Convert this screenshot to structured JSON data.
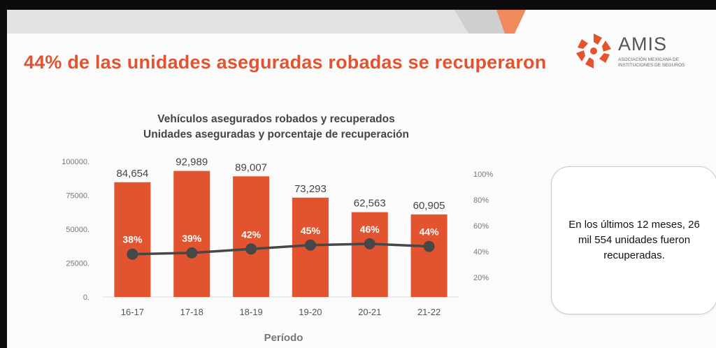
{
  "headline": "44% de las unidades aseguradas robadas se recuperaron",
  "logo": {
    "name": "AMIS",
    "subtitle": "Asociación Mexicana de Instituciones de Seguros",
    "color": "#e2542f"
  },
  "note": {
    "text": "En los últimos 12 meses, 26 mil 554 unidades fueron recuperadas."
  },
  "colors": {
    "accent": "#e2542f",
    "bar": "#e2542f",
    "line": "#474747",
    "topbar": "#d0d0d0"
  },
  "chart_data": {
    "type": "bar",
    "title": "Vehículos asegurados robados y recuperados",
    "subtitle": "Unidades aseguradas y porcentaje de recuperación",
    "xlabel": "Período",
    "ylabel": "",
    "categories": [
      "16-17",
      "17-18",
      "18-19",
      "19-20",
      "20-21",
      "21-22"
    ],
    "ylim": [
      0,
      100000
    ],
    "yticks": [
      "0.",
      "25000.",
      "50000.",
      "75000.",
      "100000."
    ],
    "y2lim": [
      0,
      100
    ],
    "y2ticks": [
      "20%",
      "40%",
      "60%",
      "80%",
      "100%"
    ],
    "grid": false,
    "series": [
      {
        "type": "bar",
        "values": [
          84654,
          92989,
          89007,
          73293,
          62563,
          60905
        ],
        "labels": [
          "84,654",
          "92,989",
          "89,007",
          "73,293",
          "62,563",
          "60,905"
        ]
      },
      {
        "type": "line",
        "axis": "right",
        "values": [
          38,
          39,
          42,
          45,
          46,
          44
        ],
        "labels": [
          "38%",
          "39%",
          "42%",
          "45%",
          "46%",
          "44%"
        ]
      }
    ]
  }
}
